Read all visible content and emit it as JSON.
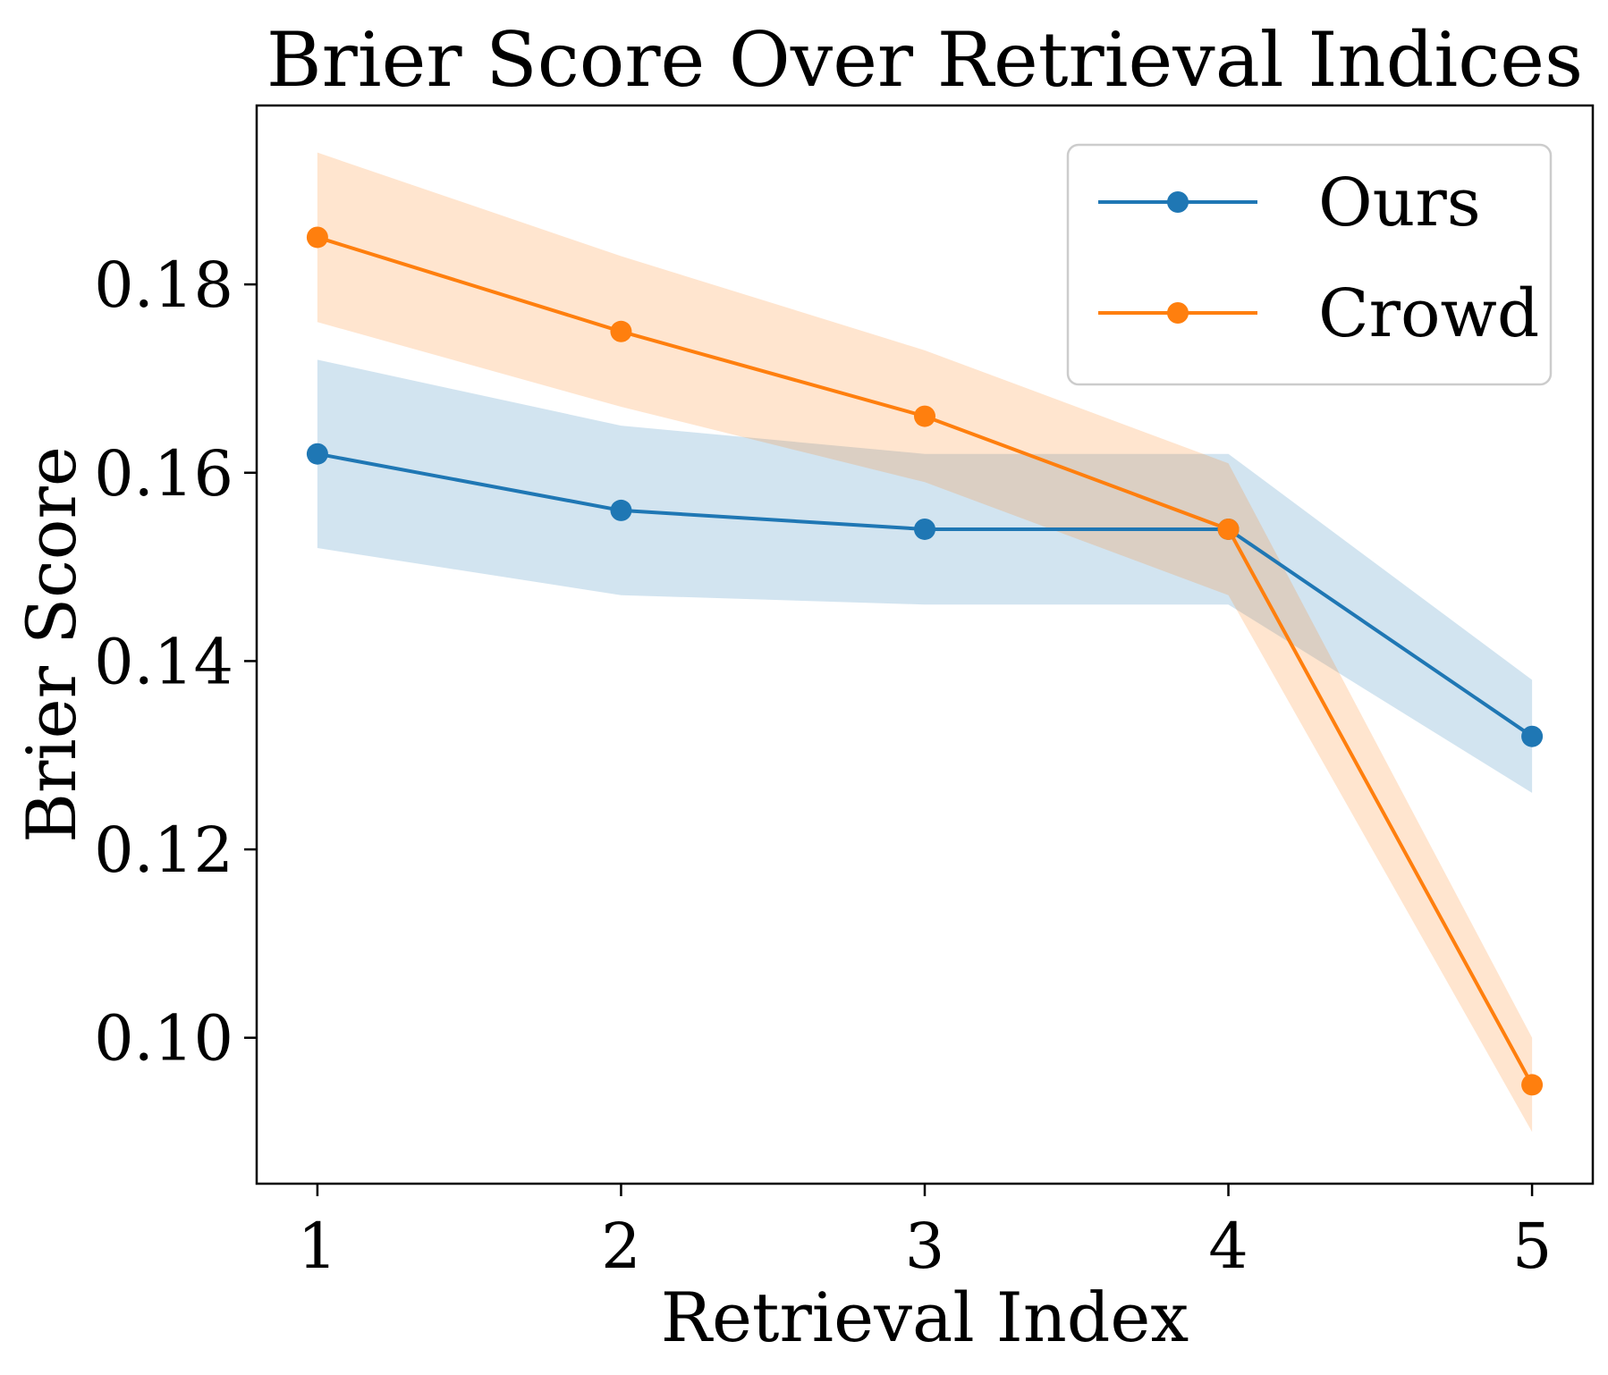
{
  "chart_data": {
    "type": "line",
    "title": "Brier Score Over Retrieval Indices",
    "xlabel": "Retrieval Index",
    "ylabel": "Brier Score",
    "x": [
      1,
      2,
      3,
      4,
      5
    ],
    "x_ticks": [
      "1",
      "2",
      "3",
      "4",
      "5"
    ],
    "y_ticks": [
      "0.10",
      "0.12",
      "0.14",
      "0.16",
      "0.18"
    ],
    "xlim": [
      0.8,
      5.2
    ],
    "ylim": [
      0.0845,
      0.199
    ],
    "grid": false,
    "legend_position": "top-right",
    "series": [
      {
        "name": "Ours",
        "color": "#1f77b4",
        "values": [
          0.162,
          0.156,
          0.154,
          0.154,
          0.132
        ],
        "lower": [
          0.152,
          0.147,
          0.146,
          0.146,
          0.126
        ],
        "upper": [
          0.172,
          0.165,
          0.162,
          0.162,
          0.138
        ]
      },
      {
        "name": "Crowd",
        "color": "#ff7f0e",
        "values": [
          0.185,
          0.175,
          0.166,
          0.154,
          0.095
        ],
        "lower": [
          0.176,
          0.167,
          0.159,
          0.147,
          0.09
        ],
        "upper": [
          0.194,
          0.183,
          0.173,
          0.161,
          0.1
        ]
      }
    ]
  }
}
